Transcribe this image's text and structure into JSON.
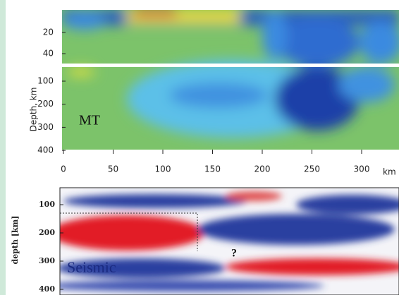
{
  "panels": [
    {
      "label": "MT",
      "y_label": "Depth, km",
      "x_unit": "km",
      "yticks_top": [
        20,
        40
      ],
      "yticks": [
        100,
        200,
        300,
        400
      ],
      "xticks": [
        0,
        50,
        100,
        150,
        200,
        250,
        300
      ]
    },
    {
      "label": "Seismic",
      "y_label": "depth [km]",
      "yticks": [
        100,
        200,
        300,
        400
      ],
      "annotation": "?"
    }
  ]
}
